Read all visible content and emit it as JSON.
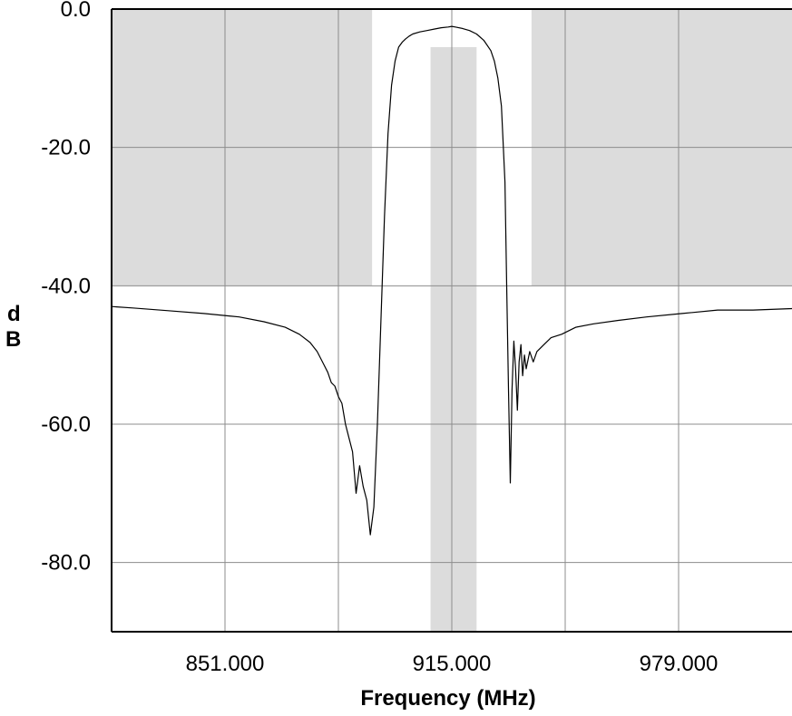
{
  "chart_data": {
    "type": "line",
    "title": "",
    "xlabel": "Frequency (MHz)",
    "ylabel": "dB",
    "xlim": [
      819,
      1011
    ],
    "ylim": [
      -90,
      0
    ],
    "grid": true,
    "x_ticks": [
      883,
      947
    ],
    "x_tick_labels": [
      {
        "value": 851,
        "label": "851.000"
      },
      {
        "value": 915,
        "label": "915.000"
      },
      {
        "value": 979,
        "label": "979.000"
      }
    ],
    "y_ticks": [
      0,
      -20,
      -40,
      -60,
      -80
    ],
    "y_tick_labels": [
      "0.0",
      "-20.0",
      "-40.0",
      "-60.0",
      "-80.0"
    ],
    "colors": {
      "mask": "#dcdcdc",
      "grid": "#8c8c8c",
      "trace": "#000000"
    },
    "mask_regions": [
      {
        "x": [
          819,
          892.5
        ],
        "y": [
          -40,
          0
        ]
      },
      {
        "x": [
          937.5,
          1011
        ],
        "y": [
          -40,
          0
        ]
      },
      {
        "x": [
          909,
          922
        ],
        "y": [
          -90,
          -5.5
        ]
      }
    ],
    "series": [
      {
        "values_note": "",
        "x": [
          819,
          825,
          835,
          845,
          855,
          862,
          868,
          872,
          875,
          877,
          878,
          879,
          880,
          881,
          882,
          883,
          884,
          885,
          886,
          887,
          888,
          889,
          890,
          891,
          892,
          893,
          894,
          895,
          896,
          897,
          898,
          899,
          900,
          901,
          902,
          903,
          904,
          906,
          908,
          910,
          912,
          914,
          915,
          916,
          918,
          920,
          922,
          924,
          926,
          927,
          928,
          929,
          930,
          930.5,
          931,
          931.5,
          932,
          932.5,
          933,
          933.5,
          934,
          934.5,
          935,
          935.5,
          936,
          937,
          938,
          939,
          941,
          943,
          946,
          950,
          955,
          962,
          970,
          980,
          990,
          1000,
          1011
        ],
        "y": [
          -43.0,
          -43.2,
          -43.6,
          -44.0,
          -44.5,
          -45.2,
          -46.0,
          -47.0,
          -48.2,
          -49.5,
          -50.5,
          -51.5,
          -52.5,
          -54.0,
          -54.5,
          -56.0,
          -57.0,
          -60.0,
          -62.0,
          -64.0,
          -70.0,
          -66.0,
          -69.0,
          -71.0,
          -76.0,
          -72.0,
          -60.0,
          -45.0,
          -30.0,
          -18.0,
          -11.0,
          -7.5,
          -5.5,
          -4.8,
          -4.3,
          -3.9,
          -3.6,
          -3.3,
          -3.1,
          -2.9,
          -2.7,
          -2.6,
          -2.5,
          -2.6,
          -2.8,
          -3.1,
          -3.6,
          -4.5,
          -6.0,
          -7.5,
          -10.0,
          -14.0,
          -25.0,
          -40.0,
          -55.0,
          -68.5,
          -55.0,
          -48.0,
          -52.0,
          -58.0,
          -51.0,
          -48.5,
          -53.0,
          -50.0,
          -52.0,
          -49.5,
          -51.0,
          -49.5,
          -48.5,
          -47.5,
          -47.0,
          -46.0,
          -45.5,
          -45.0,
          -44.5,
          -44.0,
          -43.5,
          -43.5,
          -43.3
        ]
      }
    ]
  }
}
